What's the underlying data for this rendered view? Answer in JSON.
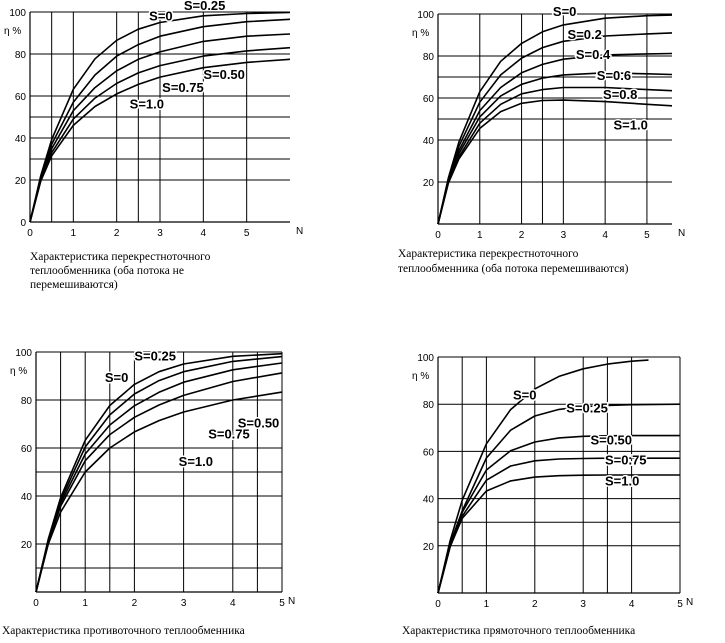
{
  "chart_data": [
    {
      "type": "line",
      "caption": [
        "Характеристика перекрестноточного",
        "теплообменника (оба потока не",
        "перемешиваются)"
      ],
      "ylabel": "η %",
      "xlabel": "N",
      "xlim": [
        0,
        6
      ],
      "ylim": [
        0,
        100
      ],
      "xticks": [
        0,
        1,
        2,
        3,
        4,
        5
      ],
      "yticks": [
        0,
        20,
        40,
        60,
        80,
        100
      ],
      "grid": true,
      "series": [
        {
          "name": "S=0",
          "x": [
            0,
            0.25,
            0.5,
            1,
            1.5,
            2,
            2.5,
            3,
            4,
            5,
            6
          ],
          "y": [
            0,
            22.1,
            39.3,
            63.2,
            77.7,
            86.5,
            91.8,
            95,
            98.2,
            99.3,
            99.8
          ]
        },
        {
          "name": "S=0.25",
          "x": [
            0,
            0.25,
            0.5,
            1,
            1.5,
            2,
            2.5,
            3,
            4,
            5,
            6
          ],
          "y": [
            0,
            21.5,
            37,
            57,
            70,
            79,
            84.5,
            88.5,
            93,
            95.4,
            96.5
          ]
        },
        {
          "name": "S=0.50",
          "x": [
            0,
            0.25,
            0.5,
            1,
            1.5,
            2,
            2.5,
            3,
            4,
            5,
            6
          ],
          "y": [
            0,
            20.8,
            34.9,
            53,
            64,
            72,
            77.5,
            81,
            86,
            88.5,
            89.5
          ]
        },
        {
          "name": "S=0.75",
          "x": [
            0,
            0.25,
            0.5,
            1,
            1.5,
            2,
            2.5,
            3,
            4,
            5,
            6
          ],
          "y": [
            0,
            20,
            33,
            49,
            59,
            66,
            71,
            74.5,
            79,
            81.5,
            83
          ]
        },
        {
          "name": "S=1.0",
          "x": [
            0,
            0.25,
            0.5,
            1,
            1.5,
            2,
            2.5,
            3,
            4,
            5,
            6
          ],
          "y": [
            0,
            19.5,
            31.5,
            46,
            55,
            61,
            65.5,
            69,
            73.5,
            76,
            77.5
          ]
        }
      ],
      "labels": [
        {
          "text": "S=0",
          "x": 2.75,
          "y": 96
        },
        {
          "text": "S=0.25",
          "x": 3.55,
          "y": 101
        },
        {
          "text": "S=0.50",
          "x": 4.0,
          "y": 68
        },
        {
          "text": "S=0.75",
          "x": 3.05,
          "y": 62
        },
        {
          "text": "S=1.0",
          "x": 2.3,
          "y": 54
        }
      ]
    },
    {
      "type": "line",
      "caption": [
        "Характеристика перекрестноточного",
        "теплообменника (оба потока перемешиваются)"
      ],
      "ylabel": "η %",
      "xlabel": "N",
      "xlim": [
        0,
        5.6
      ],
      "ylim": [
        0,
        100
      ],
      "xticks": [
        0,
        1,
        2,
        3,
        4,
        5
      ],
      "yticks": [
        20,
        40,
        60,
        80,
        100
      ],
      "grid": true,
      "series": [
        {
          "name": "S=0",
          "x": [
            0,
            0.25,
            0.5,
            1,
            1.5,
            2,
            2.5,
            3,
            4,
            5,
            5.6
          ],
          "y": [
            0,
            22,
            39,
            63,
            77.5,
            86,
            91.5,
            94.8,
            98,
            99.2,
            99.5
          ]
        },
        {
          "name": "S=0.2",
          "x": [
            0,
            0.25,
            0.5,
            1,
            1.5,
            2,
            2.5,
            3,
            4,
            5,
            5.6
          ],
          "y": [
            0,
            21.5,
            37,
            58,
            71,
            79,
            84,
            87,
            89.5,
            90.5,
            91
          ]
        },
        {
          "name": "S=0.4",
          "x": [
            0,
            0.25,
            0.5,
            1,
            1.5,
            2,
            2.5,
            3,
            4,
            5,
            5.6
          ],
          "y": [
            0,
            21,
            35,
            54,
            65,
            72,
            76,
            78.5,
            80.5,
            81,
            81.2
          ]
        },
        {
          "name": "S=0.6",
          "x": [
            0,
            0.25,
            0.5,
            1,
            1.5,
            2,
            2.5,
            3,
            4,
            5,
            5.6
          ],
          "y": [
            0,
            20.5,
            33.5,
            51,
            61,
            66.5,
            69.5,
            71,
            72,
            71.5,
            71.2
          ]
        },
        {
          "name": "S=0.8",
          "x": [
            0,
            0.25,
            0.5,
            1,
            1.5,
            2,
            2.5,
            3,
            4,
            5,
            5.6
          ],
          "y": [
            0,
            20,
            32,
            48,
            57,
            62,
            64,
            65,
            65,
            64,
            63.5
          ]
        },
        {
          "name": "S=1.0",
          "x": [
            0,
            0.25,
            0.5,
            1,
            1.5,
            2,
            2.5,
            3,
            4,
            5,
            5.6
          ],
          "y": [
            0,
            19.5,
            31,
            45.5,
            53.5,
            57.5,
            58.8,
            59,
            58.3,
            57,
            56.3
          ]
        }
      ],
      "labels": [
        {
          "text": "S=0",
          "x": 2.75,
          "y": 99
        },
        {
          "text": "S=0.2",
          "x": 3.1,
          "y": 88
        },
        {
          "text": "S=0.4",
          "x": 3.3,
          "y": 78.5
        },
        {
          "text": "S=0.6",
          "x": 3.8,
          "y": 68.5
        },
        {
          "text": "S=0.8",
          "x": 3.95,
          "y": 59.5
        },
        {
          "text": "S=1.0",
          "x": 4.2,
          "y": 45
        }
      ]
    },
    {
      "type": "line",
      "caption": [
        "Характеристика противоточного теплообменника"
      ],
      "ylabel": "η %",
      "xlabel": "N",
      "xlim": [
        0,
        5
      ],
      "ylim": [
        0,
        100
      ],
      "xticks": [
        0,
        1,
        2,
        3,
        4,
        5
      ],
      "yticks": [
        20,
        40,
        60,
        80,
        100
      ],
      "grid": true,
      "series": [
        {
          "name": "S=0",
          "x": [
            0,
            0.25,
            0.5,
            1,
            1.5,
            2,
            2.5,
            3,
            4,
            5
          ],
          "y": [
            0,
            22.1,
            39.3,
            63.2,
            77.7,
            86.5,
            91.8,
            95,
            98.2,
            99.3
          ]
        },
        {
          "name": "S=0.25",
          "x": [
            0,
            0.25,
            0.5,
            1,
            1.5,
            2,
            2.5,
            3,
            4,
            5
          ],
          "y": [
            0,
            21.7,
            38.1,
            60.4,
            73.8,
            82.5,
            88.1,
            91.8,
            96.1,
            98.1
          ]
        },
        {
          "name": "S=0.50",
          "x": [
            0,
            0.25,
            0.5,
            1,
            1.5,
            2,
            2.5,
            3,
            4,
            5
          ],
          "y": [
            0,
            21.2,
            36.9,
            57.5,
            69.6,
            77.6,
            83.2,
            87.4,
            92.6,
            95.4
          ]
        },
        {
          "name": "S=0.75",
          "x": [
            0,
            0.25,
            0.5,
            1,
            1.5,
            2,
            2.5,
            3,
            4,
            5
          ],
          "y": [
            0,
            20.8,
            35.7,
            54.7,
            65.6,
            72.8,
            77.9,
            81.9,
            87.7,
            91.3
          ]
        },
        {
          "name": "S=1.0",
          "x": [
            0,
            0.25,
            0.5,
            1,
            1.5,
            2,
            2.5,
            3,
            4,
            5
          ],
          "y": [
            0,
            20,
            33.3,
            50,
            60,
            66.7,
            71.4,
            75,
            80,
            83.3
          ]
        }
      ],
      "labels": [
        {
          "text": "S=0",
          "x": 1.4,
          "y": 87.5
        },
        {
          "text": "S=0.25",
          "x": 2.0,
          "y": 96.5
        },
        {
          "text": "S=0.50",
          "x": 4.1,
          "y": 68.5
        },
        {
          "text": "S=0.75",
          "x": 3.5,
          "y": 64
        },
        {
          "text": "S=1.0",
          "x": 2.9,
          "y": 52.5
        }
      ]
    },
    {
      "type": "line",
      "caption": [
        "Характеристика прямоточного теплообменника"
      ],
      "ylabel": "η %",
      "xlabel": "N",
      "xlim": [
        0,
        5
      ],
      "ylim": [
        0,
        100
      ],
      "xticks": [
        0,
        1,
        2,
        3,
        4,
        5
      ],
      "yticks": [
        20,
        40,
        60,
        80,
        100
      ],
      "grid": true,
      "series": [
        {
          "name": "S=0",
          "x": [
            0,
            0.25,
            0.5,
            1,
            1.5,
            2,
            2.5,
            3,
            3.5,
            4,
            4.35
          ],
          "y": [
            0,
            22.1,
            39.3,
            63.2,
            77.7,
            86.5,
            91.8,
            95,
            97,
            98.2,
            98.7
          ]
        },
        {
          "name": "S=0.25",
          "x": [
            0,
            0.25,
            0.5,
            1,
            1.5,
            2,
            2.5,
            3,
            3.5,
            4,
            5
          ],
          "y": [
            0,
            20.8,
            34.8,
            57.2,
            69,
            75,
            77.8,
            79,
            79.5,
            79.8,
            80
          ]
        },
        {
          "name": "S=0.50",
          "x": [
            0,
            0.25,
            0.5,
            1,
            1.5,
            2,
            2.5,
            3,
            3.5,
            4,
            5
          ],
          "y": [
            0,
            19.9,
            34.2,
            52.1,
            60.3,
            64,
            65.7,
            66.4,
            66.6,
            66.7,
            66.7
          ]
        },
        {
          "name": "S=0.75",
          "x": [
            0,
            0.25,
            0.5,
            1,
            1.5,
            2,
            2.5,
            3,
            3.5,
            4,
            5
          ],
          "y": [
            0,
            19.5,
            32.5,
            47.8,
            53.8,
            56,
            56.8,
            57,
            57.1,
            57.1,
            57.1
          ]
        },
        {
          "name": "S=1.0",
          "x": [
            0,
            0.25,
            0.5,
            1,
            1.5,
            2,
            2.5,
            3,
            3.5,
            4,
            5
          ],
          "y": [
            0,
            19.7,
            31.6,
            43.2,
            47.5,
            49.1,
            49.7,
            49.9,
            50,
            50,
            50
          ]
        }
      ],
      "labels": [
        {
          "text": "S=0",
          "x": 1.55,
          "y": 82
        },
        {
          "text": "S=0.25",
          "x": 2.65,
          "y": 76.5
        },
        {
          "text": "S=0.50",
          "x": 3.15,
          "y": 63
        },
        {
          "text": "S=0.75",
          "x": 3.45,
          "y": 54.5
        },
        {
          "text": "S=1.0",
          "x": 3.45,
          "y": 45.5
        }
      ]
    }
  ]
}
